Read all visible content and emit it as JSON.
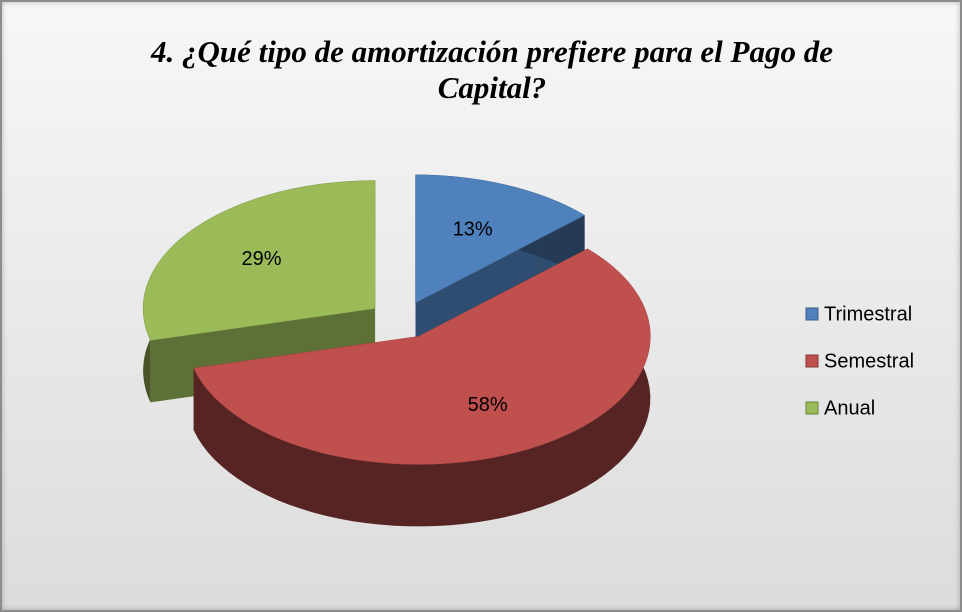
{
  "chart_data": {
    "type": "pie",
    "title": "4. ¿Qué tipo de amortización prefiere para el Pago de Capital?",
    "categories": [
      "Trimestral",
      "Semestral",
      "Anual"
    ],
    "values": [
      13,
      58,
      29
    ],
    "value_labels": [
      "13%",
      "58%",
      "29%"
    ],
    "colors": [
      "#4f81bd",
      "#c0504d",
      "#9bbb59"
    ]
  }
}
